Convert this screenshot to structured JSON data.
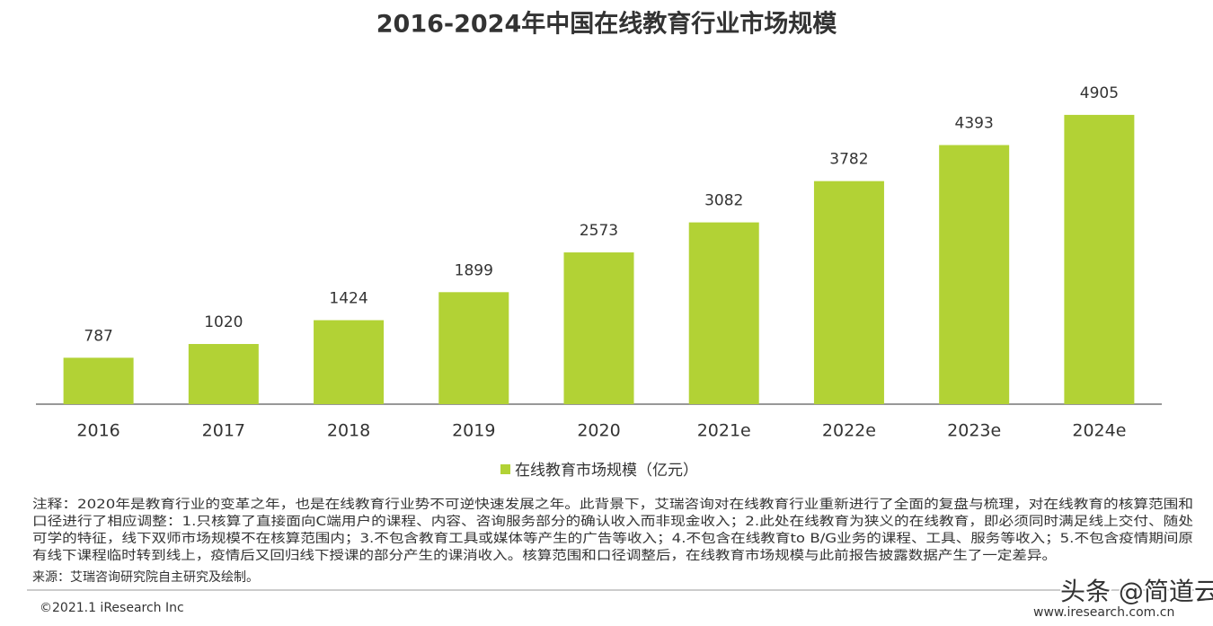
{
  "chart_data": {
    "type": "bar",
    "title": "2016-2024年中国在线教育行业市场规模",
    "categories": [
      "2016",
      "2017",
      "2018",
      "2019",
      "2020",
      "2021e",
      "2022e",
      "2023e",
      "2024e"
    ],
    "series": [
      {
        "name": "在线教育市场规模（亿元）",
        "color": "#b2d235",
        "values": [
          787,
          1020,
          1424,
          1899,
          2573,
          3082,
          3782,
          4393,
          4905
        ]
      }
    ],
    "ylim": [
      0,
      6000
    ],
    "legend": "bottom"
  },
  "notes": [
    "注释：2020年是教育行业的变革之年，也是在线教育行业势不可逆快速发展之年。此背景下，艾瑞咨询对在线教育行业重新进行了全面的复盘与梳理，对在线教育的核算范围和",
    "口径进行了相应调整：1.只核算了直接面向C端用户的课程、内容、咨询服务部分的确认收入而非现金收入；2.此处在线教育为狭义的在线教育，即必须同时满足线上交付、随处",
    "可学的特征，线下双师市场规模不在核算范围内；3.不包含教育工具或媒体等产生的广告等收入；4.不包含在线教育to B/G业务的课程、工具、服务等收入；5.不包含疫情期间原",
    "有线下课程临时转到线上，疫情后又回归线下授课的部分产生的课消收入。核算范围和口径调整后，在线教育市场规模与此前报告披露数据产生了一定差异。"
  ],
  "source": "来源：艾瑞咨询研究院自主研究及绘制。",
  "copyright": "©2021.1 iResearch Inc",
  "website": "www.iresearch.com.cn",
  "watermark": "头条 @简道云"
}
